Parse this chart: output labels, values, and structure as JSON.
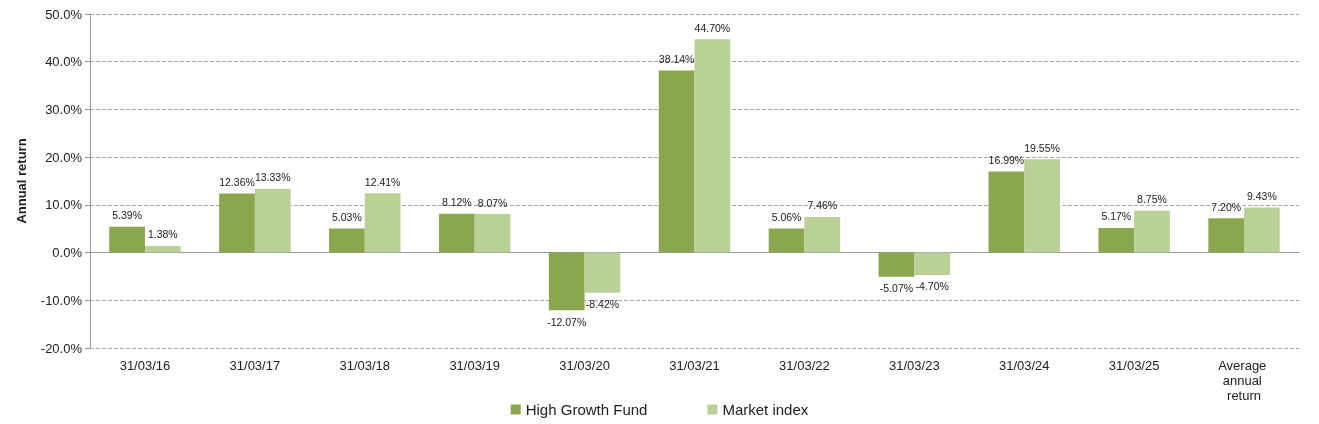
{
  "chart_data": {
    "type": "bar",
    "ylabel": "Annual return",
    "categories": [
      "31/03/16",
      "31/03/17",
      "31/03/18",
      "31/03/19",
      "31/03/20",
      "31/03/21",
      "31/03/22",
      "31/03/23",
      "31/03/24",
      "31/03/25",
      "Average annual return"
    ],
    "series": [
      {
        "name": "High Growth Fund",
        "color": "#8aa74e",
        "values": [
          5.39,
          12.36,
          5.03,
          8.12,
          -12.07,
          38.14,
          5.06,
          -5.07,
          16.99,
          5.17,
          7.2
        ],
        "value_labels": [
          "5.39%",
          "12.36%",
          "5.03%",
          "8.12%",
          "-12.07%",
          "38.14%",
          "5.06%",
          "-5.07%",
          "16.99%",
          "5.17%",
          "7.20%"
        ]
      },
      {
        "name": "Market index",
        "color": "#b9d197",
        "values": [
          1.38,
          13.33,
          12.41,
          8.07,
          -8.42,
          44.7,
          7.46,
          -4.7,
          19.55,
          8.75,
          9.43
        ],
        "value_labels": [
          "1.38%",
          "13.33%",
          "12.41%",
          "8.07%",
          "-8.42%",
          "44.70%",
          "7.46%",
          "-4.70%",
          "19.55%",
          "8.75%",
          "9.43%"
        ]
      }
    ],
    "ylim": [
      -20,
      50
    ],
    "yticks": [
      {
        "value": -20,
        "label": "-20.0%"
      },
      {
        "value": -10,
        "label": "-10.0%"
      },
      {
        "value": 0,
        "label": "0.0%"
      },
      {
        "value": 10,
        "label": "10.0%"
      },
      {
        "value": 20,
        "label": "20.0%"
      },
      {
        "value": 30,
        "label": "30.0%"
      },
      {
        "value": 40,
        "label": "40.0%"
      },
      {
        "value": 50,
        "label": "50.0%"
      }
    ],
    "grid": "y",
    "legend": "bottom"
  }
}
